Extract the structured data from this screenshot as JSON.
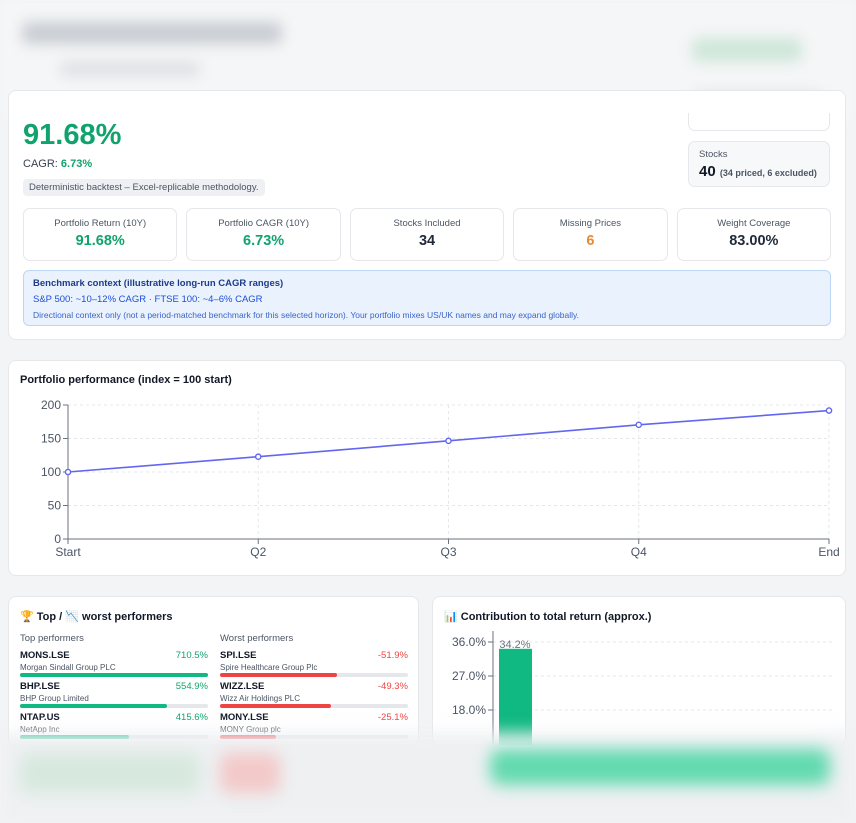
{
  "summary": {
    "total_return": "91.68%",
    "cagr_label": "CAGR:",
    "cagr_value": "6.73%",
    "method_note": "Deterministic backtest – Excel-replicable methodology.",
    "stocks_label": "Stocks",
    "stocks_count": "40",
    "stocks_detail": "(34 priced, 6 excluded)"
  },
  "metrics": [
    {
      "label": "Portfolio Return (10Y)",
      "value": "91.68%",
      "color": "#10a36d"
    },
    {
      "label": "Portfolio CAGR (10Y)",
      "value": "6.73%",
      "color": "#10a36d"
    },
    {
      "label": "Stocks Included",
      "value": "34",
      "color": "#1f2937"
    },
    {
      "label": "Missing Prices",
      "value": "6",
      "color": "#ea8a2e"
    },
    {
      "label": "Weight Coverage",
      "value": "83.00%",
      "color": "#1f2937"
    }
  ],
  "benchmark": {
    "title": "Benchmark context (illustrative long-run CAGR ranges)",
    "line1": "S&P 500: ~10–12% CAGR · FTSE 100: ~4–6% CAGR",
    "line2": "Directional context only (not a period-matched benchmark for this selected horizon). Your portfolio mixes US/UK names and may expand globally."
  },
  "performance": {
    "title": "Portfolio performance (index = 100 start)"
  },
  "performers": {
    "title_prefix": "🏆 Top / ",
    "title_icon": "📉",
    "title_suffix": " worst performers",
    "top_heading": "Top performers",
    "worst_heading": "Worst performers",
    "top": [
      {
        "ticker": "MONS.LSE",
        "name": "Morgan Sindall Group PLC",
        "pct": "710.5%",
        "fill": 1.0
      },
      {
        "ticker": "BHP.LSE",
        "name": "BHP Group Limited",
        "pct": "554.9%",
        "fill": 0.78
      },
      {
        "ticker": "NTAP.US",
        "name": "NetApp Inc",
        "pct": "415.6%",
        "fill": 0.58
      }
    ],
    "worst": [
      {
        "ticker": "SPI.LSE",
        "name": "Spire Healthcare Group Plc",
        "pct": "-51.9%",
        "fill": 0.62
      },
      {
        "ticker": "WIZZ.LSE",
        "name": "Wizz Air Holdings PLC",
        "pct": "-49.3%",
        "fill": 0.59
      },
      {
        "ticker": "MONY.LSE",
        "name": "MONY Group plc",
        "pct": "-25.1%",
        "fill": 0.3
      }
    ]
  },
  "contribution": {
    "title_icon": "📊",
    "title": "Contribution to total return (approx.)"
  },
  "chart_data": [
    {
      "type": "line",
      "title": "Portfolio performance (index = 100 start)",
      "categories": [
        "Start",
        "Q2",
        "Q3",
        "Q4",
        "End"
      ],
      "series": [
        {
          "values": [
            100,
            122.8,
            146.5,
            170.4,
            191.7
          ],
          "color": "#6366f1"
        }
      ],
      "yticks": [
        0,
        50,
        100,
        150,
        200
      ],
      "ylim": [
        0,
        200
      ],
      "grid": true
    },
    {
      "type": "bar",
      "title": "Contribution to total return (approx.)",
      "values": [
        34.2
      ],
      "labels": [
        "34.2%"
      ],
      "yticks": [
        "36.0%",
        "27.0%",
        "18.0%"
      ],
      "yvalues": [
        36,
        27,
        18
      ],
      "color": "#10b981",
      "grid": true
    }
  ]
}
